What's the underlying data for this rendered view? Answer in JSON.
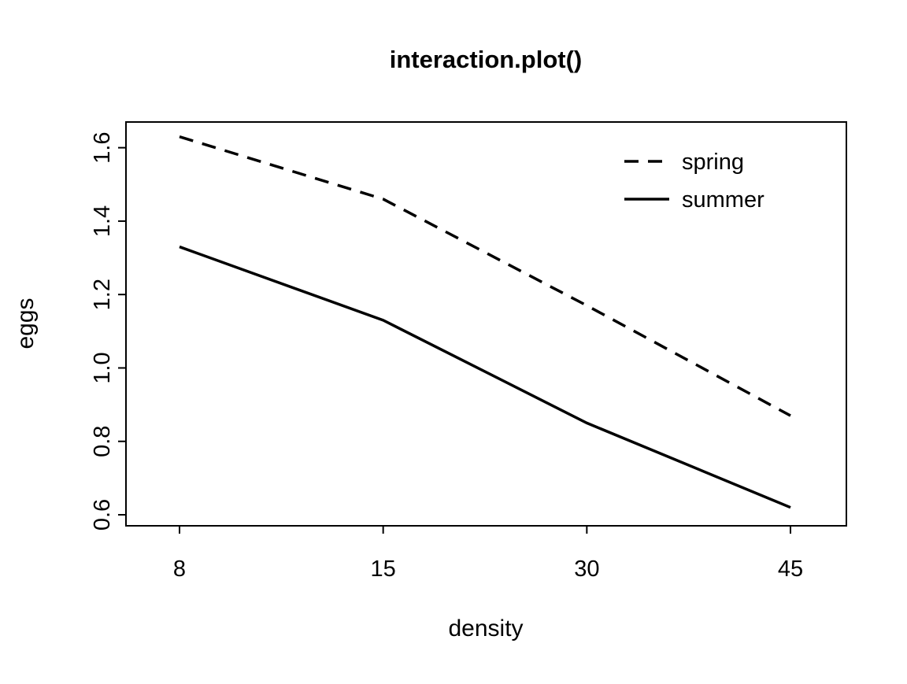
{
  "chart_data": {
    "type": "line",
    "title": "interaction.plot()",
    "xlabel": "density",
    "ylabel": "eggs",
    "categories": [
      "8",
      "15",
      "30",
      "45"
    ],
    "series": [
      {
        "name": "spring",
        "values": [
          1.63,
          1.46,
          1.17,
          0.87
        ],
        "line_style": "dashed"
      },
      {
        "name": "summer",
        "values": [
          1.33,
          1.13,
          0.85,
          0.62
        ],
        "line_style": "solid"
      }
    ],
    "yticks": [
      "0.6",
      "0.8",
      "1.0",
      "1.2",
      "1.4",
      "1.6"
    ],
    "ylim": [
      0.57,
      1.67
    ],
    "legend_position": "top-right",
    "legend_entries": [
      "spring",
      "summer"
    ],
    "grid": "off",
    "line_color": "#000000",
    "background_color": "#ffffff"
  }
}
